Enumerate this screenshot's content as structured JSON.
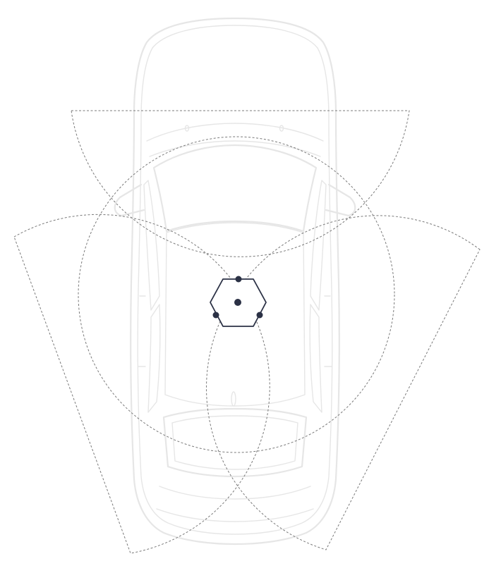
{
  "colors": {
    "background": "#ffffff",
    "car_outline": "#e6e6e6",
    "coverage": "#7a7a7a",
    "device": "#2b3145"
  },
  "icons": {
    "car": "car-top-view-icon",
    "device": "hexagon-sensor-icon"
  },
  "diagram": {
    "vehicle_view": "top-down",
    "sensor_count": 3,
    "coverage_zones": [
      {
        "name": "front",
        "shape": "sector"
      },
      {
        "name": "left-rear",
        "shape": "sector"
      },
      {
        "name": "right-rear",
        "shape": "sector"
      },
      {
        "name": "front-range",
        "shape": "circle"
      },
      {
        "name": "left-range",
        "shape": "circle"
      },
      {
        "name": "right-range",
        "shape": "circle"
      }
    ]
  }
}
